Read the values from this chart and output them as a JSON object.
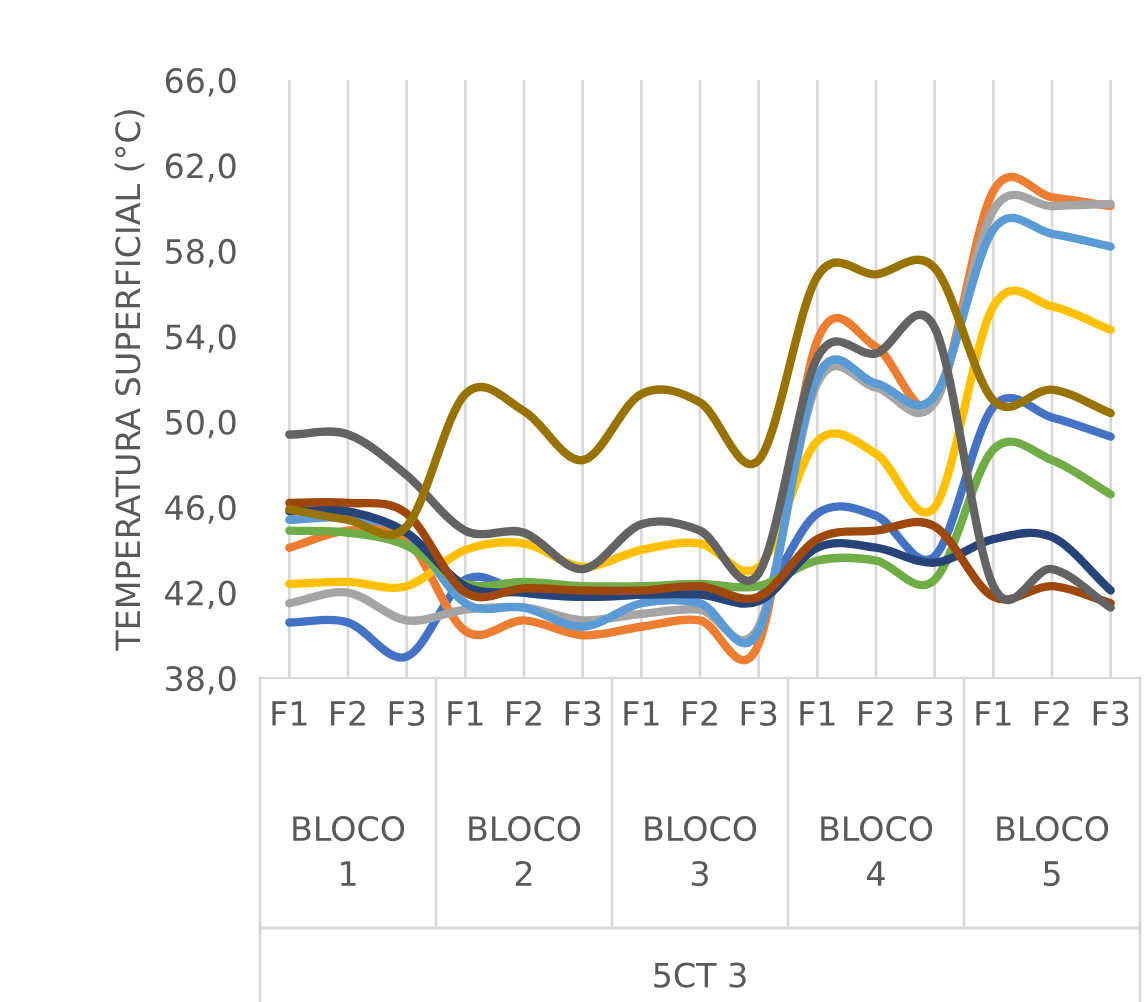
{
  "chart_data": {
    "type": "line",
    "ylabel": "TEMPERATURA SUPERFICIAL (°C)",
    "categories": [
      "F1",
      "F2",
      "F3",
      "F1",
      "F2",
      "F3",
      "F1",
      "F2",
      "F3",
      "F1",
      "F2",
      "F3",
      "F1",
      "F2",
      "F3"
    ],
    "annotations": [
      "BLOCO\n1",
      "BLOCO\n2",
      "BLOCO\n3",
      "BLOCO\n4",
      "BLOCO\n5",
      "5CT 3"
    ],
    "ylim": [
      38,
      66
    ],
    "yticks": [
      {
        "value": 38,
        "label": "38,0"
      },
      {
        "value": 42,
        "label": "42,0"
      },
      {
        "value": 46,
        "label": "46,0"
      },
      {
        "value": 50,
        "label": "50,0"
      },
      {
        "value": 54,
        "label": "54,0"
      },
      {
        "value": 58,
        "label": "58,0"
      },
      {
        "value": 62,
        "label": "62,0"
      },
      {
        "value": 66,
        "label": "66,0"
      }
    ],
    "grid": "x",
    "legend": false,
    "marker": "none",
    "line_style": "solid",
    "series": [
      {
        "color": "#4472c4",
        "values": [
          40.6,
          40.6,
          39.0,
          42.6,
          42.0,
          41.8,
          41.9,
          42.1,
          41.8,
          45.7,
          45.6,
          43.7,
          50.7,
          50.2,
          49.3
        ]
      },
      {
        "color": "#ed7d31",
        "values": [
          44.1,
          44.9,
          44.5,
          40.2,
          40.7,
          40.0,
          40.4,
          40.7,
          39.6,
          53.8,
          53.5,
          50.9,
          60.8,
          60.5,
          60.1
        ]
      },
      {
        "color": "#a5a5a5",
        "values": [
          41.5,
          42.0,
          40.7,
          41.2,
          41.3,
          40.7,
          41.0,
          41.2,
          40.4,
          51.8,
          51.6,
          50.9,
          59.9,
          60.1,
          60.2
        ]
      },
      {
        "color": "#ffc000",
        "values": [
          42.4,
          42.5,
          42.3,
          44.0,
          44.3,
          43.2,
          44.0,
          44.3,
          43.2,
          49.1,
          48.5,
          46.0,
          55.4,
          55.4,
          54.3
        ]
      },
      {
        "color": "#5b9bd5",
        "values": [
          45.4,
          45.5,
          44.8,
          41.5,
          41.3,
          40.4,
          41.5,
          41.5,
          40.2,
          52.1,
          51.8,
          51.2,
          59.0,
          58.8,
          58.2
        ]
      },
      {
        "color": "#70ad47",
        "values": [
          44.9,
          44.8,
          44.2,
          42.4,
          42.5,
          42.3,
          42.3,
          42.4,
          42.3,
          43.5,
          43.5,
          42.6,
          48.7,
          48.2,
          46.6
        ]
      },
      {
        "color": "#264478",
        "values": [
          45.8,
          45.8,
          44.8,
          42.3,
          42.0,
          41.8,
          41.9,
          41.9,
          41.6,
          44.1,
          44.1,
          43.4,
          44.5,
          44.6,
          42.1
        ]
      },
      {
        "color": "#9e480e",
        "values": [
          46.2,
          46.2,
          45.7,
          42.0,
          42.2,
          42.1,
          42.1,
          42.3,
          41.8,
          44.5,
          44.9,
          45.1,
          41.8,
          42.3,
          41.5
        ]
      },
      {
        "color": "#636363",
        "values": [
          49.4,
          49.4,
          47.5,
          44.9,
          44.8,
          43.1,
          45.2,
          44.9,
          42.9,
          53.0,
          53.2,
          54.4,
          42.3,
          43.1,
          41.3
        ]
      },
      {
        "color": "#997300",
        "values": [
          45.9,
          45.4,
          45.1,
          51.3,
          50.5,
          48.2,
          51.3,
          50.9,
          48.2,
          56.8,
          56.9,
          57.2,
          51.0,
          51.5,
          50.4
        ]
      }
    ]
  }
}
